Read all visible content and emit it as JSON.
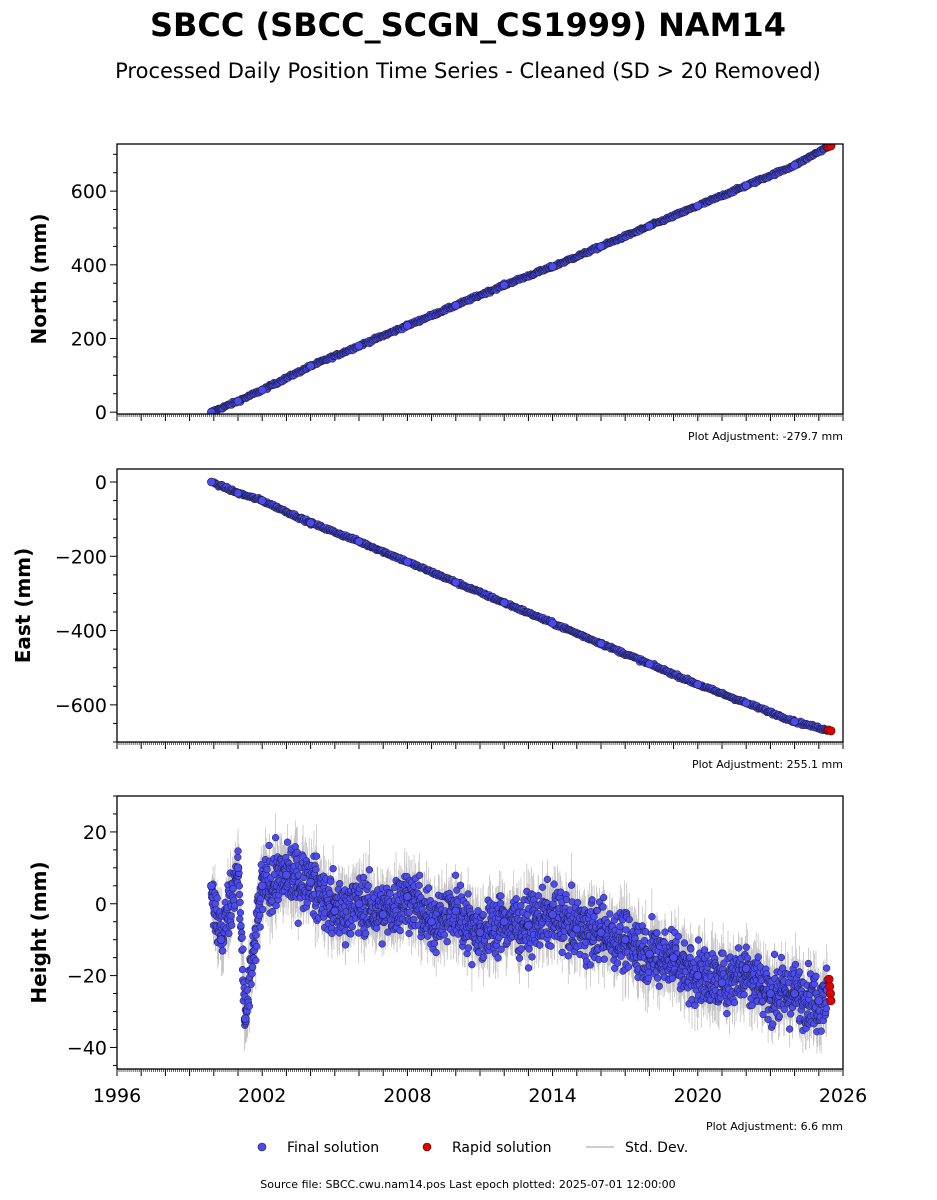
{
  "title": "SBCC (SBCC_SCGN_CS1999) NAM14",
  "subtitle": "Processed Daily Position Time Series - Cleaned (SD > 20 Removed)",
  "footer": "Source file: SBCC.cwu.nam14.pos  Last epoch plotted: 2025-07-01 12:00:00",
  "colors": {
    "final": "#4b4bf0",
    "final_edge": "#1a1a3a",
    "rapid": "#e00000",
    "stddev": "#bbbbbb"
  },
  "legend": [
    {
      "label": "Final solution",
      "kind": "final"
    },
    {
      "label": "Rapid solution",
      "kind": "rapid"
    },
    {
      "label": "Std. Dev.",
      "kind": "stddev"
    }
  ],
  "chart_data": [
    {
      "type": "scatter",
      "ylabel": "North (mm)",
      "xlim": [
        1996,
        2026
      ],
      "ylim": [
        -5,
        728
      ],
      "yticks": [
        0,
        200,
        400,
        600
      ],
      "adjustment": "Plot Adjustment: -279.7 mm",
      "show_xtick_labels": false,
      "series": [
        {
          "kind": "final",
          "x": [
            1999.9,
            2001.0,
            2002.0,
            2004.0,
            2006.0,
            2008.0,
            2010.0,
            2012.0,
            2014.0,
            2016.0,
            2018.0,
            2020.0,
            2022.0,
            2024.0,
            2025.35
          ],
          "y": [
            0,
            30,
            60,
            125,
            180,
            235,
            290,
            345,
            395,
            450,
            505,
            560,
            615,
            670,
            720
          ]
        },
        {
          "kind": "rapid",
          "x": [
            2025.4,
            2025.5
          ],
          "y": [
            721,
            723
          ]
        }
      ]
    },
    {
      "type": "scatter",
      "ylabel": "East (mm)",
      "xlim": [
        1996,
        2026
      ],
      "ylim": [
        -700,
        35
      ],
      "yticks": [
        0,
        -200,
        -400,
        -600
      ],
      "adjustment": "Plot Adjustment: 255.1 mm",
      "show_xtick_labels": false,
      "series": [
        {
          "kind": "final",
          "x": [
            1999.9,
            2001.0,
            2002.0,
            2004.0,
            2006.0,
            2008.0,
            2010.0,
            2012.0,
            2014.0,
            2016.0,
            2018.0,
            2020.0,
            2022.0,
            2024.0,
            2025.35
          ],
          "y": [
            0,
            -30,
            -50,
            -110,
            -160,
            -215,
            -270,
            -325,
            -380,
            -435,
            -490,
            -545,
            -595,
            -645,
            -668
          ]
        },
        {
          "kind": "rapid",
          "x": [
            2025.4,
            2025.5
          ],
          "y": [
            -668,
            -670
          ]
        }
      ]
    },
    {
      "type": "scatter",
      "ylabel": "Height (mm)",
      "xlim": [
        1996,
        2026
      ],
      "ylim": [
        -46,
        30
      ],
      "yticks": [
        20,
        0,
        -20,
        -40
      ],
      "xticks": [
        1996,
        2002,
        2008,
        2014,
        2020,
        2026
      ],
      "adjustment": "Plot Adjustment: 6.6 mm",
      "show_xtick_labels": true,
      "series": [
        {
          "kind": "final",
          "x": [
            1999.9,
            2000.3,
            2001.0,
            2001.3,
            2002.0,
            2003.0,
            2004.0,
            2005.0,
            2006.0,
            2007.0,
            2008.0,
            2009.0,
            2010.0,
            2011.0,
            2012.0,
            2013.0,
            2014.0,
            2015.0,
            2016.0,
            2017.0,
            2018.0,
            2019.0,
            2020.0,
            2021.0,
            2022.0,
            2023.0,
            2024.0,
            2025.0,
            2025.35
          ],
          "y": [
            5,
            -10,
            10,
            -32,
            5,
            8,
            6,
            -2,
            0,
            -3,
            2,
            -5,
            -2,
            -8,
            -5,
            -6,
            -3,
            -7,
            -8,
            -10,
            -14,
            -15,
            -20,
            -22,
            -18,
            -25,
            -25,
            -27,
            -24
          ]
        },
        {
          "kind": "rapid",
          "x": [
            2025.42,
            2025.45,
            2025.48,
            2025.5
          ],
          "y": [
            -21,
            -23,
            -25,
            -27
          ]
        }
      ]
    }
  ]
}
